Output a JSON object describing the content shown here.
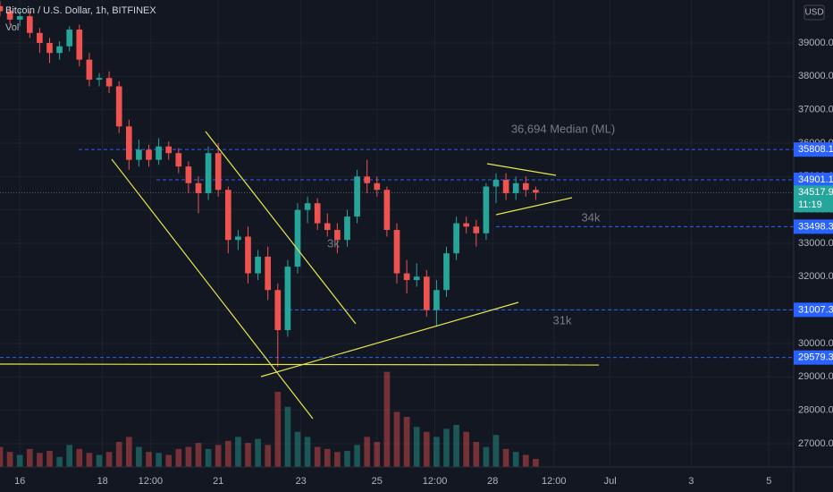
{
  "chart_data": {
    "type": "candlestick",
    "title": "Bitcoin / U.S. Dollar, 1h, BITFINEX",
    "volume_label": "Vol",
    "currency": "USD",
    "x": [
      -12,
      -6,
      0,
      6,
      12,
      18,
      24,
      30,
      36,
      42,
      48,
      54,
      60,
      66,
      72,
      78,
      84,
      90,
      96,
      102,
      108,
      114,
      120,
      126,
      132,
      138,
      144,
      150,
      156,
      162,
      168,
      174,
      180,
      186,
      192,
      198,
      204,
      210,
      216,
      222,
      228,
      234,
      240,
      246,
      252,
      258,
      264,
      270,
      276,
      282,
      288,
      294,
      300,
      306,
      312
    ],
    "open": [
      40100,
      39950,
      39700,
      39800,
      39300,
      39000,
      38700,
      38900,
      39400,
      38500,
      37900,
      37950,
      37700,
      36500,
      35500,
      35800,
      35500,
      35900,
      35700,
      35300,
      34800,
      34500,
      35700,
      34600,
      33100,
      33200,
      32100,
      32600,
      31600,
      30400,
      32300,
      34000,
      34200,
      33600,
      33400,
      33100,
      33800,
      35000,
      34800,
      34600,
      33400,
      32100,
      31900,
      32000,
      31000,
      31600,
      32700,
      33600,
      33500,
      33300,
      34700,
      34900,
      34500,
      34800,
      34600
    ],
    "high": [
      40250,
      40100,
      40000,
      39950,
      39450,
      39150,
      39050,
      39500,
      39550,
      38700,
      38100,
      38150,
      37850,
      36700,
      36100,
      35950,
      36150,
      36050,
      35850,
      35450,
      35000,
      35900,
      36000,
      34700,
      33400,
      33500,
      32800,
      32900,
      31800,
      32500,
      34200,
      34400,
      34350,
      33900,
      33600,
      34000,
      35200,
      35500,
      35000,
      34700,
      33600,
      32500,
      32400,
      32200,
      31900,
      32900,
      33800,
      33800,
      33700,
      34800,
      35100,
      35100,
      35000,
      35000,
      34700
    ],
    "low": [
      39800,
      39550,
      39500,
      39150,
      38700,
      38400,
      38500,
      38750,
      38300,
      37700,
      37700,
      37500,
      36300,
      35200,
      35300,
      35300,
      35350,
      35500,
      35100,
      34500,
      33900,
      34300,
      34400,
      32700,
      32800,
      31800,
      31900,
      31300,
      29300,
      30200,
      32100,
      33600,
      33400,
      33200,
      32700,
      32900,
      33600,
      34500,
      34400,
      33200,
      31800,
      31500,
      31700,
      30800,
      30500,
      31400,
      32500,
      33300,
      32900,
      33100,
      34200,
      34300,
      34300,
      34400,
      34300
    ],
    "close": [
      39950,
      39700,
      39800,
      39300,
      39000,
      38700,
      38900,
      39400,
      38500,
      37900,
      37950,
      37700,
      36500,
      35500,
      35800,
      35500,
      35900,
      35700,
      35300,
      34800,
      34500,
      35700,
      34600,
      33100,
      33200,
      32100,
      32600,
      31600,
      30400,
      32300,
      34000,
      34200,
      33600,
      33400,
      33100,
      33800,
      35000,
      34800,
      34600,
      33400,
      32100,
      31900,
      32000,
      31000,
      31600,
      32700,
      33600,
      33500,
      33300,
      34700,
      34900,
      34500,
      34800,
      34600,
      34518
    ],
    "volume": [
      20,
      15,
      12,
      18,
      14,
      16,
      10,
      22,
      18,
      14,
      12,
      15,
      25,
      30,
      20,
      15,
      14,
      12,
      18,
      20,
      24,
      18,
      22,
      26,
      30,
      24,
      28,
      22,
      75,
      60,
      35,
      30,
      20,
      18,
      15,
      16,
      22,
      30,
      25,
      95,
      55,
      50,
      40,
      35,
      30,
      38,
      42,
      35,
      25,
      20,
      32,
      18,
      15,
      12,
      8
    ],
    "vlim": [
      0,
      100
    ],
    "up_color": "#26a69a",
    "down_color": "#ef5350",
    "xlim": [
      -12,
      468
    ],
    "ylim": [
      26302,
      40286
    ],
    "yticks": [
      {
        "value": 27000,
        "label": "27000.0"
      },
      {
        "value": 28000,
        "label": "28000.0"
      },
      {
        "value": 29000,
        "label": "29000.0"
      },
      {
        "value": 30000,
        "label": "30000.0"
      },
      {
        "value": 31000,
        "label": "31000.0"
      },
      {
        "value": 32000,
        "label": "32000.0"
      },
      {
        "value": 33000,
        "label": "33000.0"
      },
      {
        "value": 34000,
        "label": "34000.0"
      },
      {
        "value": 35000,
        "label": "35000.0"
      },
      {
        "value": 36000,
        "label": "36000.0"
      },
      {
        "value": 37000,
        "label": "37000.0"
      },
      {
        "value": 38000,
        "label": "38000.0"
      },
      {
        "value": 39000,
        "label": "39000.0"
      }
    ],
    "xticks": [
      {
        "value": 0,
        "label": "16"
      },
      {
        "value": 50,
        "label": "18"
      },
      {
        "value": 79,
        "label": "12:00"
      },
      {
        "value": 120,
        "label": "21"
      },
      {
        "value": 170,
        "label": "23"
      },
      {
        "value": 216,
        "label": "25"
      },
      {
        "value": 251,
        "label": "12:00"
      },
      {
        "value": 286,
        "label": "28"
      },
      {
        "value": 323,
        "label": "12:00"
      },
      {
        "value": 357,
        "label": "Jul"
      },
      {
        "value": 406,
        "label": "3"
      },
      {
        "value": 453,
        "label": "5"
      }
    ],
    "grid": true,
    "levels": [
      35808.1,
      34901.1,
      33498.3,
      31007.3,
      29579.3
    ],
    "level_color": "#2962ff",
    "last_price": 34517.9,
    "countdown": "11:19",
    "annotations": [
      "36,694 Median (ML)",
      "34k",
      "31k",
      "3k"
    ]
  }
}
